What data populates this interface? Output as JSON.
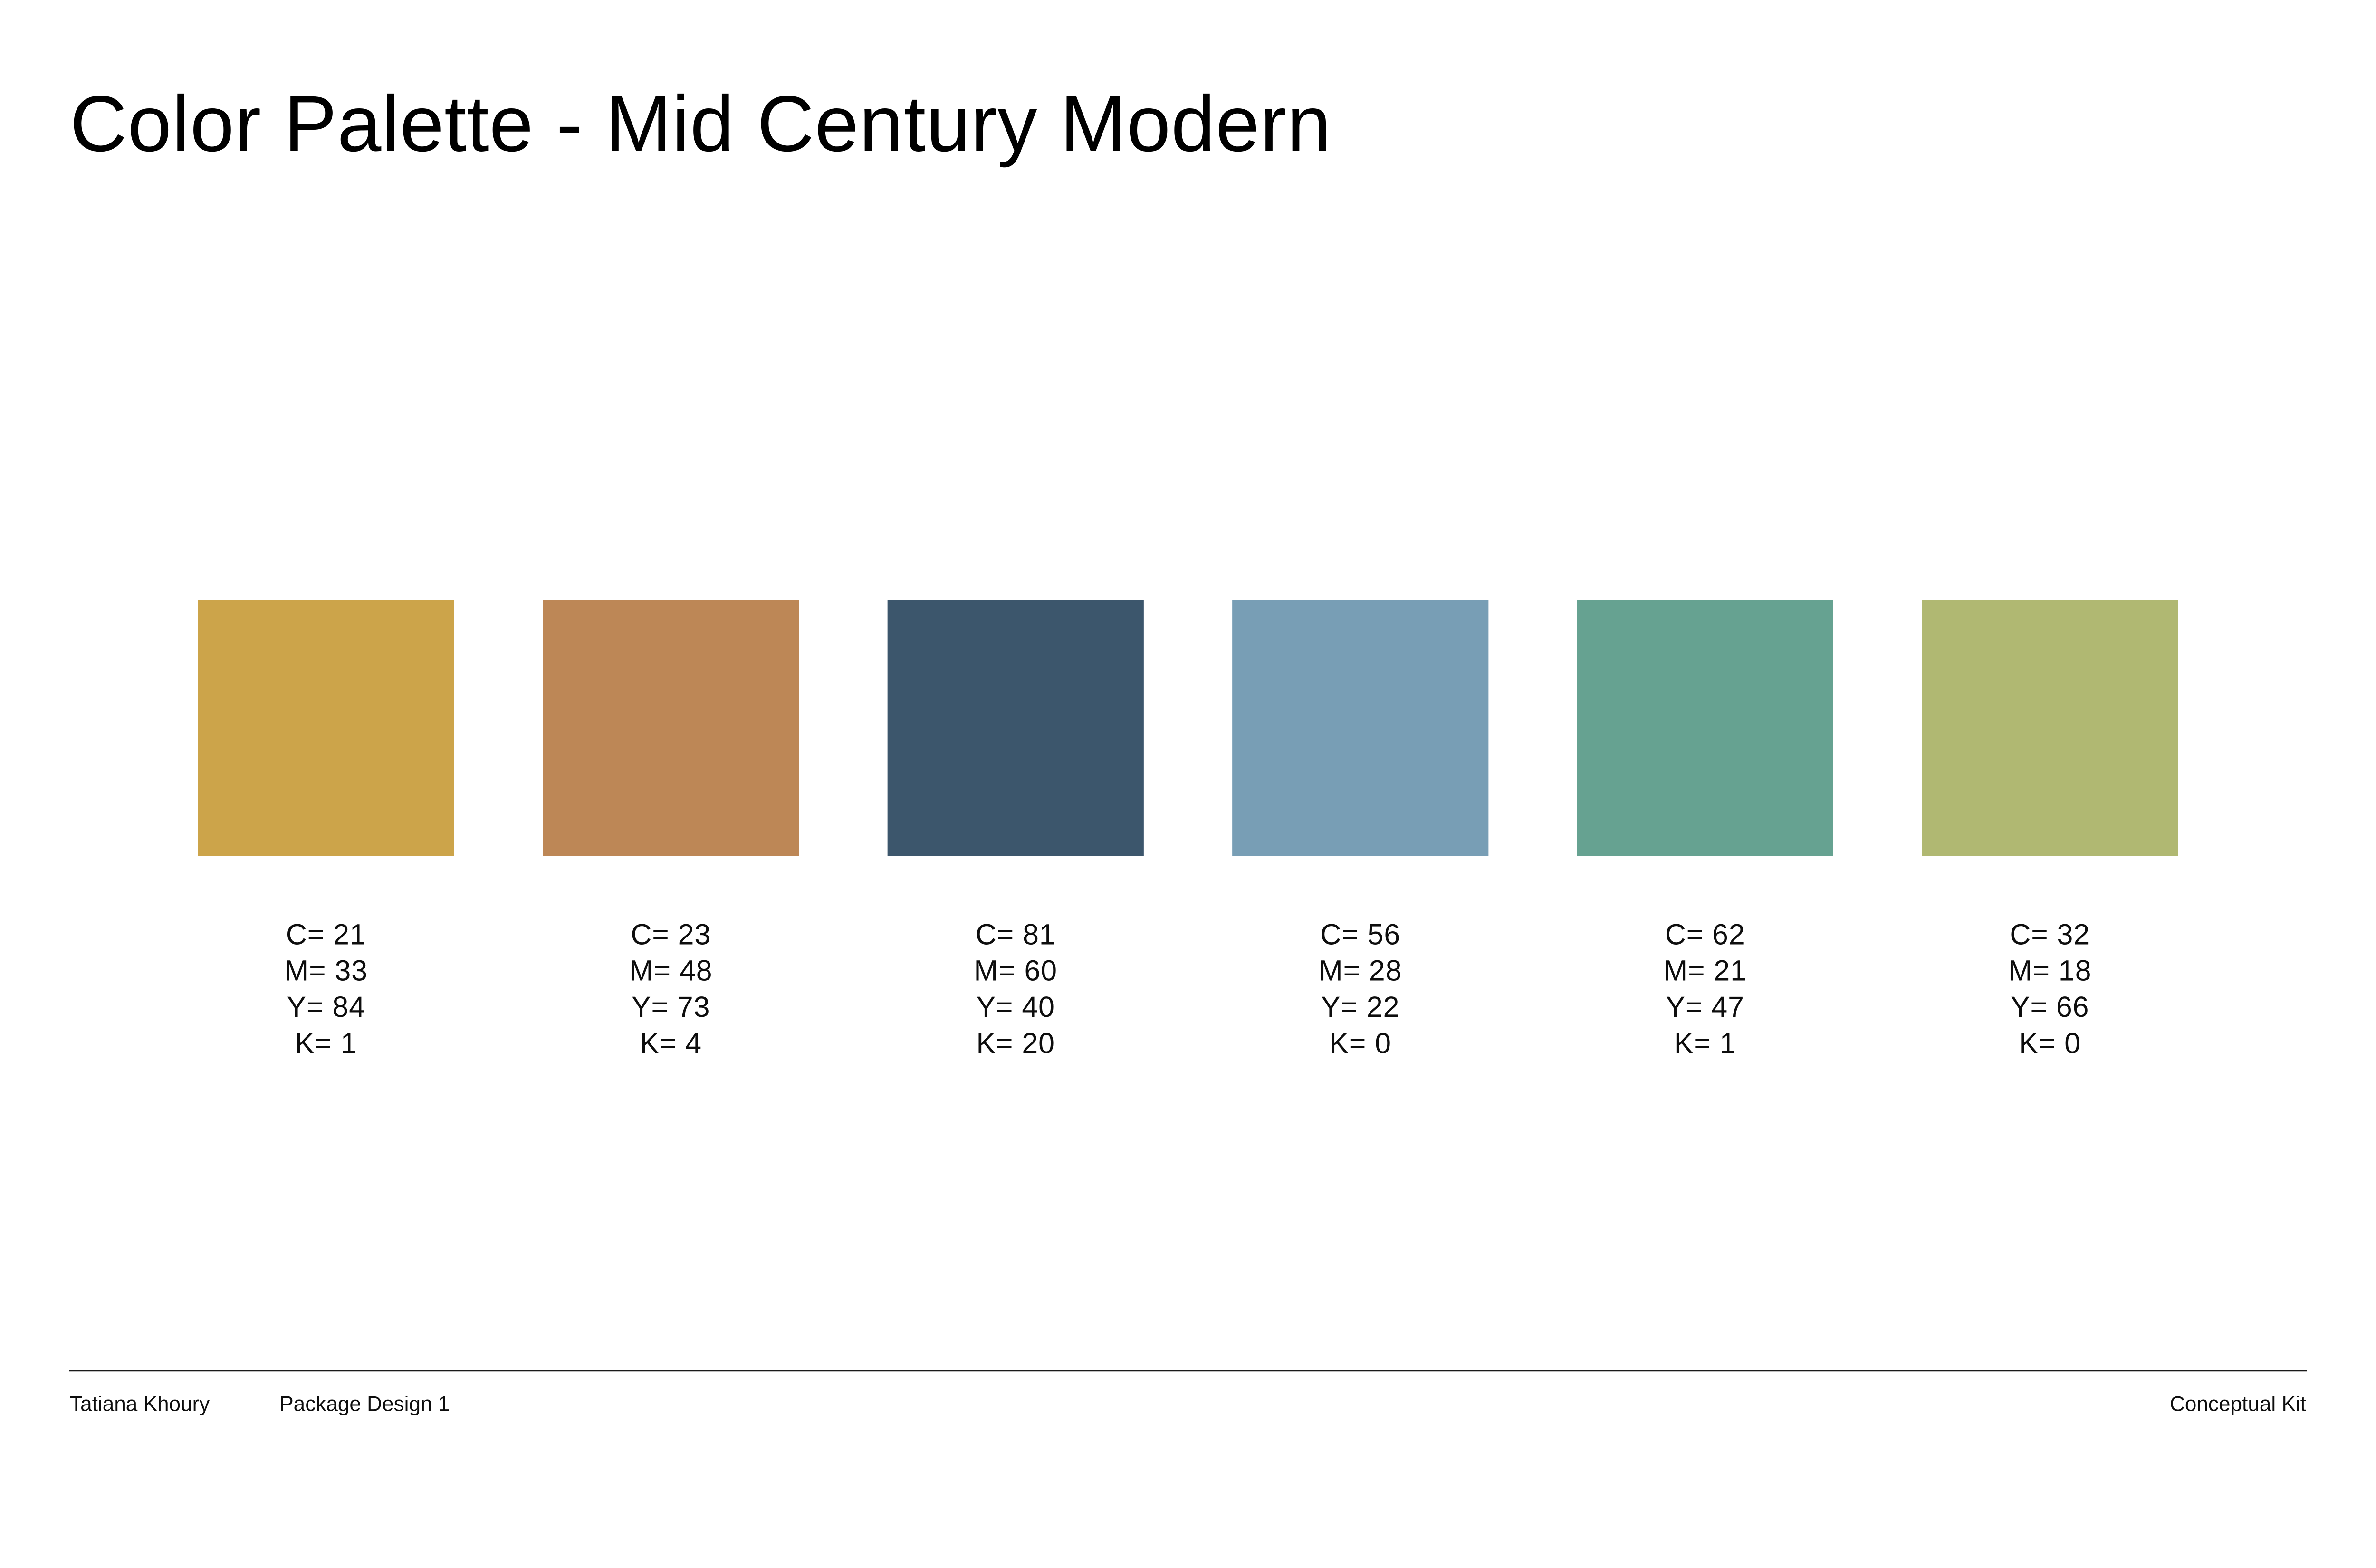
{
  "page": {
    "title": "Color Palette - Mid Century Modern"
  },
  "swatches": [
    {
      "name": "mustard-gold",
      "hex": "#CCA44A",
      "cmyk": {
        "c": "C= 21",
        "m": "M= 33",
        "y": "Y= 84",
        "k": "K= 1"
      }
    },
    {
      "name": "terracotta",
      "hex": "#BD8756",
      "cmyk": {
        "c": "C= 23",
        "m": "M= 48",
        "y": "Y= 73",
        "k": "K= 4"
      }
    },
    {
      "name": "dark-slate-blue",
      "hex": "#3C566C",
      "cmyk": {
        "c": "C= 81",
        "m": "M= 60",
        "y": "Y= 40",
        "k": "K= 20"
      }
    },
    {
      "name": "steel-blue",
      "hex": "#789EB5",
      "cmyk": {
        "c": "C= 56",
        "m": "M= 28",
        "y": "Y= 22",
        "k": "K= 0"
      }
    },
    {
      "name": "teal-green",
      "hex": "#66A291",
      "cmyk": {
        "c": "C= 62",
        "m": "M= 21",
        "y": "Y= 47",
        "k": "K= 1"
      }
    },
    {
      "name": "olive-green",
      "hex": "#B0B872",
      "cmyk": {
        "c": "C= 32",
        "m": "M= 18",
        "y": "Y= 66",
        "k": "K= 0"
      }
    }
  ],
  "footer": {
    "author": "Tatiana Khoury",
    "course": "Package Design 1",
    "project": "Conceptual Kit"
  }
}
